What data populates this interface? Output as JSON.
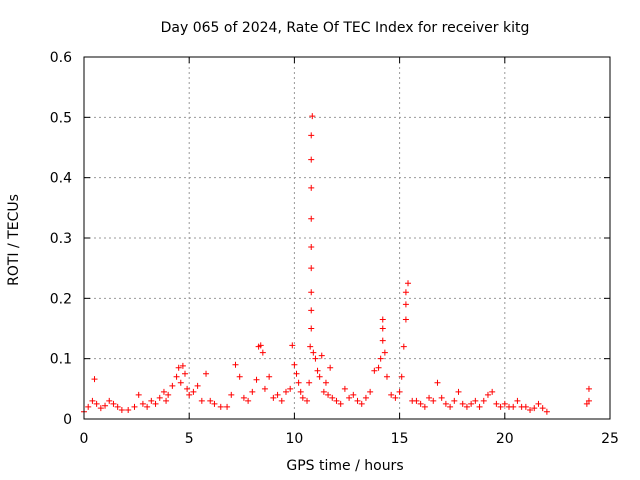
{
  "chart_data": {
    "type": "scatter",
    "title": "Day 065 of 2024, Rate Of TEC Index for receiver kitg",
    "xlabel": "GPS time / hours",
    "ylabel": "ROTI / TECUs",
    "xlim": [
      0,
      25
    ],
    "ylim": [
      0,
      0.6
    ],
    "xticks": [
      0,
      5,
      10,
      15,
      20,
      25
    ],
    "yticks": [
      0,
      0.1,
      0.2,
      0.3,
      0.4,
      0.5,
      0.6
    ],
    "xtick_labels": [
      "0",
      "5",
      "10",
      "15",
      "20",
      "25"
    ],
    "ytick_labels": [
      "0",
      "0.1",
      "0.2",
      "0.3",
      "0.4",
      "0.5",
      "0.6"
    ],
    "grid": true,
    "marker": "+",
    "marker_color": "#ff0000",
    "series": [
      {
        "name": "ROTI",
        "x": [
          0.0,
          0.2,
          0.4,
          0.5,
          0.6,
          0.8,
          1.0,
          1.2,
          1.4,
          1.6,
          1.8,
          2.1,
          2.4,
          2.6,
          2.8,
          3.0,
          3.2,
          3.4,
          3.6,
          3.8,
          3.9,
          4.0,
          4.2,
          4.4,
          4.5,
          4.6,
          4.7,
          4.8,
          4.9,
          5.0,
          5.2,
          5.4,
          5.6,
          5.8,
          6.0,
          6.2,
          6.5,
          6.8,
          7.0,
          7.2,
          7.4,
          7.6,
          7.8,
          8.0,
          8.2,
          8.3,
          8.4,
          8.5,
          8.6,
          8.8,
          9.0,
          9.2,
          9.4,
          9.6,
          9.8,
          9.9,
          10.0,
          10.1,
          10.2,
          10.3,
          10.4,
          10.6,
          10.7,
          10.75,
          10.8,
          10.8,
          10.8,
          10.8,
          10.8,
          10.8,
          10.8,
          10.8,
          10.8,
          10.85,
          10.9,
          11.0,
          11.1,
          11.2,
          11.3,
          11.4,
          11.5,
          11.6,
          11.7,
          11.8,
          12.0,
          12.2,
          12.4,
          12.6,
          12.8,
          13.0,
          13.2,
          13.4,
          13.6,
          13.8,
          14.0,
          14.1,
          14.2,
          14.2,
          14.2,
          14.3,
          14.4,
          14.6,
          14.8,
          15.0,
          15.1,
          15.2,
          15.3,
          15.3,
          15.3,
          15.4,
          15.6,
          15.8,
          16.0,
          16.2,
          16.4,
          16.6,
          16.8,
          17.0,
          17.2,
          17.4,
          17.6,
          17.8,
          18.0,
          18.2,
          18.4,
          18.6,
          18.8,
          19.0,
          19.2,
          19.4,
          19.6,
          19.8,
          20.0,
          20.2,
          20.4,
          20.6,
          20.8,
          21.0,
          21.2,
          21.4,
          21.6,
          21.8,
          22.0,
          23.9,
          24.0,
          24.0
        ],
        "y": [
          0.012,
          0.02,
          0.03,
          0.066,
          0.025,
          0.018,
          0.022,
          0.03,
          0.025,
          0.02,
          0.015,
          0.015,
          0.02,
          0.04,
          0.025,
          0.02,
          0.03,
          0.025,
          0.035,
          0.045,
          0.03,
          0.04,
          0.055,
          0.07,
          0.085,
          0.06,
          0.088,
          0.075,
          0.05,
          0.04,
          0.045,
          0.055,
          0.03,
          0.075,
          0.03,
          0.025,
          0.02,
          0.02,
          0.04,
          0.09,
          0.07,
          0.035,
          0.03,
          0.045,
          0.065,
          0.12,
          0.122,
          0.11,
          0.05,
          0.07,
          0.035,
          0.04,
          0.03,
          0.045,
          0.05,
          0.122,
          0.09,
          0.075,
          0.06,
          0.045,
          0.035,
          0.03,
          0.06,
          0.12,
          0.15,
          0.18,
          0.21,
          0.25,
          0.285,
          0.332,
          0.383,
          0.43,
          0.47,
          0.502,
          0.11,
          0.1,
          0.08,
          0.07,
          0.105,
          0.045,
          0.06,
          0.04,
          0.085,
          0.035,
          0.03,
          0.025,
          0.05,
          0.035,
          0.04,
          0.03,
          0.025,
          0.035,
          0.045,
          0.08,
          0.085,
          0.1,
          0.13,
          0.15,
          0.165,
          0.11,
          0.07,
          0.04,
          0.035,
          0.045,
          0.07,
          0.12,
          0.165,
          0.19,
          0.21,
          0.225,
          0.03,
          0.03,
          0.025,
          0.02,
          0.035,
          0.03,
          0.06,
          0.035,
          0.025,
          0.02,
          0.03,
          0.045,
          0.025,
          0.02,
          0.025,
          0.03,
          0.02,
          0.03,
          0.04,
          0.045,
          0.025,
          0.02,
          0.025,
          0.02,
          0.02,
          0.03,
          0.02,
          0.02,
          0.015,
          0.018,
          0.025,
          0.018,
          0.012,
          0.025,
          0.03,
          0.05
        ]
      }
    ]
  }
}
